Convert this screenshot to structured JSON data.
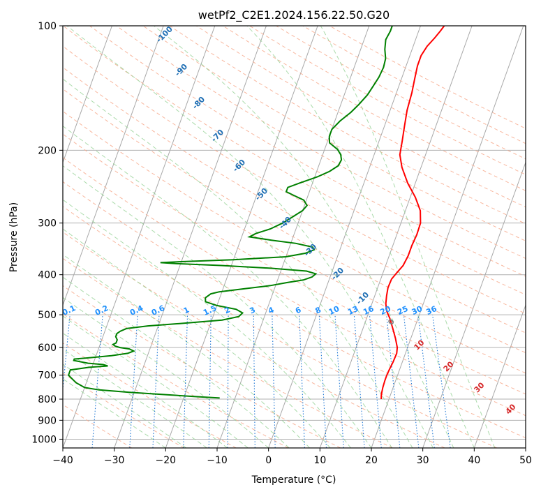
{
  "chart_data": {
    "type": "line",
    "title": "wetPf2_C2E1.2024.156.22.50.G20",
    "xlabel": "Temperature (°C)",
    "ylabel": "Pressure (hPa)",
    "xlim": [
      -40,
      50
    ],
    "ylim": [
      1050,
      100
    ],
    "y_scale": "log",
    "grid": true,
    "x_ticks": [
      -40,
      -30,
      -20,
      -10,
      0,
      10,
      20,
      30,
      40,
      50
    ],
    "y_ticks": [
      100,
      200,
      300,
      400,
      500,
      600,
      700,
      800,
      900,
      1000
    ],
    "series": [
      {
        "color": "#ff0000",
        "points": [
          [
            800,
            18.5
          ],
          [
            780,
            18.2
          ],
          [
            750,
            18.0
          ],
          [
            720,
            17.9
          ],
          [
            700,
            17.9
          ],
          [
            680,
            18.0
          ],
          [
            650,
            18.2
          ],
          [
            620,
            18.3
          ],
          [
            600,
            18.0
          ],
          [
            570,
            17.0
          ],
          [
            540,
            15.8
          ],
          [
            510,
            14.5
          ],
          [
            490,
            13.4
          ],
          [
            470,
            12.7
          ],
          [
            450,
            12.3
          ],
          [
            430,
            12.0
          ],
          [
            410,
            12.1
          ],
          [
            395,
            12.7
          ],
          [
            380,
            13.4
          ],
          [
            360,
            13.7
          ],
          [
            340,
            13.7
          ],
          [
            320,
            13.9
          ],
          [
            300,
            13.8
          ],
          [
            280,
            12.9
          ],
          [
            260,
            11.0
          ],
          [
            240,
            8.5
          ],
          [
            220,
            6.3
          ],
          [
            205,
            5.0
          ],
          [
            190,
            4.5
          ],
          [
            175,
            3.9
          ],
          [
            160,
            3.3
          ],
          [
            145,
            3.0
          ],
          [
            135,
            2.6
          ],
          [
            125,
            2.2
          ],
          [
            118,
            2.2
          ],
          [
            112,
            2.7
          ],
          [
            107,
            3.6
          ],
          [
            103,
            4.2
          ],
          [
            100,
            4.6
          ]
        ]
      },
      {
        "color": "#008000",
        "points": [
          [
            795,
            -13.0
          ],
          [
            790,
            -17.0
          ],
          [
            780,
            -24.0
          ],
          [
            770,
            -31.0
          ],
          [
            760,
            -37.0
          ],
          [
            750,
            -40.0
          ],
          [
            730,
            -42.0
          ],
          [
            700,
            -44.0
          ],
          [
            680,
            -44.0
          ],
          [
            670,
            -40.5
          ],
          [
            665,
            -37.0
          ],
          [
            660,
            -38.0
          ],
          [
            655,
            -41.0
          ],
          [
            645,
            -44.0
          ],
          [
            640,
            -44.0
          ],
          [
            635,
            -41.0
          ],
          [
            628,
            -37.0
          ],
          [
            620,
            -34.0
          ],
          [
            612,
            -33.0
          ],
          [
            605,
            -34.0
          ],
          [
            600,
            -36.0
          ],
          [
            595,
            -37.0
          ],
          [
            590,
            -37.5
          ],
          [
            585,
            -37.0
          ],
          [
            575,
            -37.0
          ],
          [
            565,
            -37.5
          ],
          [
            555,
            -37.5
          ],
          [
            548,
            -37.0
          ],
          [
            540,
            -36.0
          ],
          [
            532,
            -32.0
          ],
          [
            525,
            -26.0
          ],
          [
            515,
            -18.0
          ],
          [
            505,
            -15.0
          ],
          [
            495,
            -14.5
          ],
          [
            485,
            -16.0
          ],
          [
            475,
            -20.0
          ],
          [
            465,
            -22.5
          ],
          [
            455,
            -22.8
          ],
          [
            445,
            -22.0
          ],
          [
            440,
            -20.5
          ],
          [
            432,
            -15.5
          ],
          [
            425,
            -11.0
          ],
          [
            418,
            -8.0
          ],
          [
            412,
            -5.0
          ],
          [
            405,
            -3.5
          ],
          [
            398,
            -3.0
          ],
          [
            392,
            -5.0
          ],
          [
            386,
            -12.0
          ],
          [
            380,
            -22.0
          ],
          [
            376,
            -31.0
          ],
          [
            374,
            -34.0
          ],
          [
            372,
            -30.0
          ],
          [
            368,
            -20.0
          ],
          [
            362,
            -10.0
          ],
          [
            355,
            -6.5
          ],
          [
            348,
            -5.0
          ],
          [
            343,
            -5.5
          ],
          [
            336,
            -9.0
          ],
          [
            330,
            -14.0
          ],
          [
            324,
            -18.5
          ],
          [
            318,
            -17.5
          ],
          [
            310,
            -15.0
          ],
          [
            300,
            -13.0
          ],
          [
            290,
            -11.5
          ],
          [
            280,
            -10.0
          ],
          [
            272,
            -9.5
          ],
          [
            264,
            -10.5
          ],
          [
            258,
            -12.5
          ],
          [
            252,
            -14.5
          ],
          [
            246,
            -14.5
          ],
          [
            240,
            -12.5
          ],
          [
            232,
            -9.5
          ],
          [
            225,
            -7.5
          ],
          [
            218,
            -6.2
          ],
          [
            211,
            -6.0
          ],
          [
            205,
            -6.5
          ],
          [
            199,
            -7.5
          ],
          [
            192,
            -9.5
          ],
          [
            185,
            -10.0
          ],
          [
            178,
            -10.0
          ],
          [
            170,
            -9.0
          ],
          [
            162,
            -7.5
          ],
          [
            155,
            -6.5
          ],
          [
            147,
            -5.5
          ],
          [
            140,
            -5.0
          ],
          [
            133,
            -4.5
          ],
          [
            126,
            -4.3
          ],
          [
            120,
            -4.5
          ],
          [
            114,
            -5.3
          ],
          [
            108,
            -5.8
          ],
          [
            103,
            -5.5
          ],
          [
            100,
            -5.5
          ]
        ]
      }
    ],
    "dry_adiabat_labels": [
      "-100",
      "-90",
      "-80",
      "-70",
      "-60",
      "-50",
      "-40",
      "-30",
      "-20",
      "-10",
      "0",
      "10",
      "20",
      "30",
      "40"
    ],
    "mixing_ratio_labels": [
      "0.1",
      "0.2",
      "0.4",
      "0.6",
      "1",
      "1.5",
      "2",
      "3",
      "4",
      "6",
      "8",
      "10",
      "13",
      "16",
      "20",
      "25",
      "30",
      "36"
    ]
  }
}
